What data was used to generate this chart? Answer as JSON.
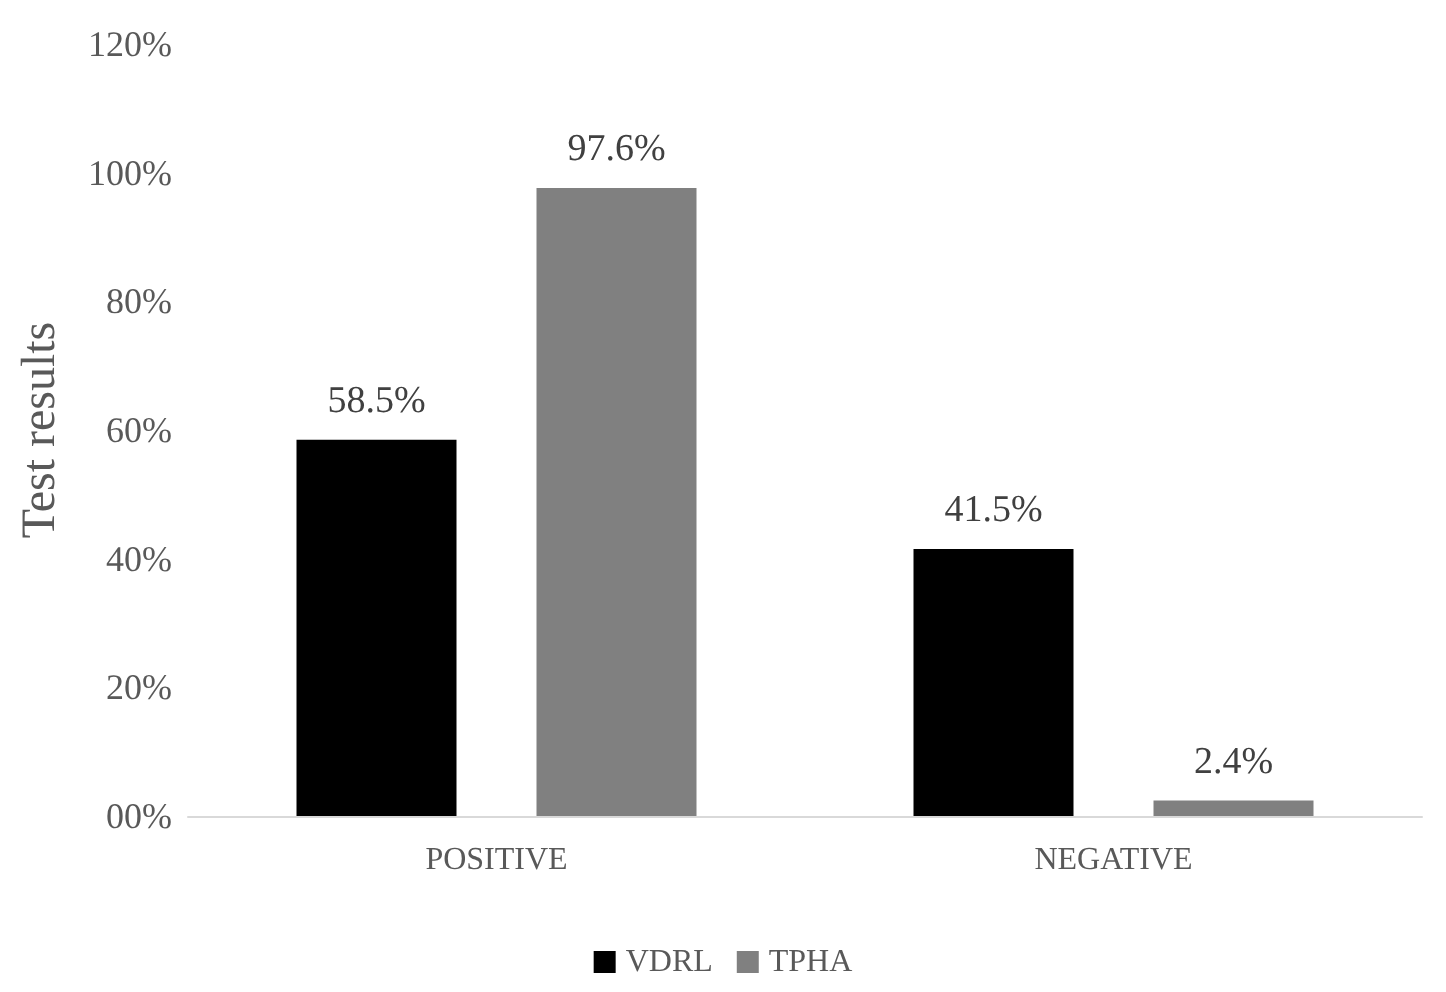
{
  "chart_data": {
    "type": "bar",
    "ylabel": "Test results",
    "categories": [
      "POSITIVE",
      "NEGATIVE"
    ],
    "series": [
      {
        "name": "VDRL",
        "color": "#000000",
        "values": [
          58.5,
          41.5
        ],
        "value_labels": [
          "58.5%",
          "41.5%"
        ]
      },
      {
        "name": "TPHA",
        "color": "#808080",
        "values": [
          97.6,
          2.4
        ],
        "value_labels": [
          "97.6%",
          "2.4%"
        ]
      }
    ],
    "ylim": [
      0,
      120
    ],
    "yticks": [
      {
        "value": 0,
        "label": "00%"
      },
      {
        "value": 20,
        "label": "20%"
      },
      {
        "value": 40,
        "label": "40%"
      },
      {
        "value": 60,
        "label": "60%"
      },
      {
        "value": 80,
        "label": "80%"
      },
      {
        "value": 100,
        "label": "100%"
      },
      {
        "value": 120,
        "label": "120%"
      }
    ],
    "grid": false,
    "legend": "bottom"
  }
}
